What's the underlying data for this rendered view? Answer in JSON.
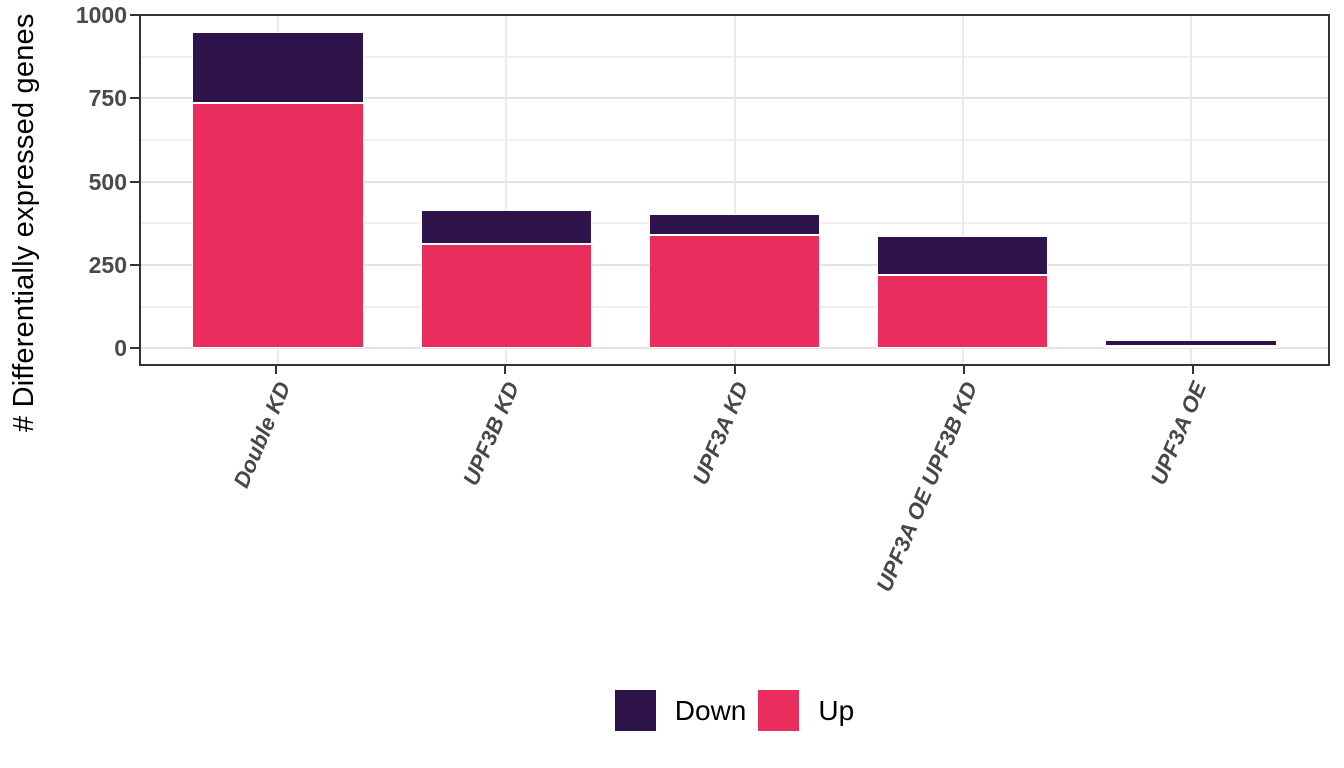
{
  "chart_data": {
    "type": "bar",
    "variant": "stacked",
    "title": "",
    "xlabel": "",
    "ylabel": "# Differentially expressed genes",
    "categories": [
      "Double KD",
      "UPF3B KD",
      "UPF3A KD",
      "UPF3A OE UPF3B KD",
      "UPF3A OE"
    ],
    "series": [
      {
        "name": "Down",
        "color": "#2F144C",
        "values": [
          214,
          103,
          64,
          119,
          18
        ]
      },
      {
        "name": "Up",
        "color": "#E92E5D",
        "values": [
          735,
          313,
          340,
          219,
          6
        ]
      }
    ],
    "stack_order_top_to_bottom": [
      "Down",
      "Up"
    ],
    "yticks": [
      0,
      250,
      500,
      750,
      1000
    ],
    "minor_gridline_values": [
      125,
      375,
      625,
      875
    ],
    "ylim": [
      -47.5,
      997.5
    ],
    "bar_width_fraction": 0.75,
    "grid": "horizontal major + minor; vertical lines at category centers",
    "legend_position": "bottom-center",
    "styles": {
      "up_color": "#E92E5D",
      "down_color": "#2F144C",
      "bar_stroke_color": "#FFFFFF",
      "axis_text_color": "#4A4A4A",
      "axis_title_color": "#000000",
      "panel_border_color": "#333333",
      "major_grid_color": "#E4E4E4",
      "minor_grid_color": "#F0F0F0",
      "background": "#FFFFFF"
    }
  }
}
